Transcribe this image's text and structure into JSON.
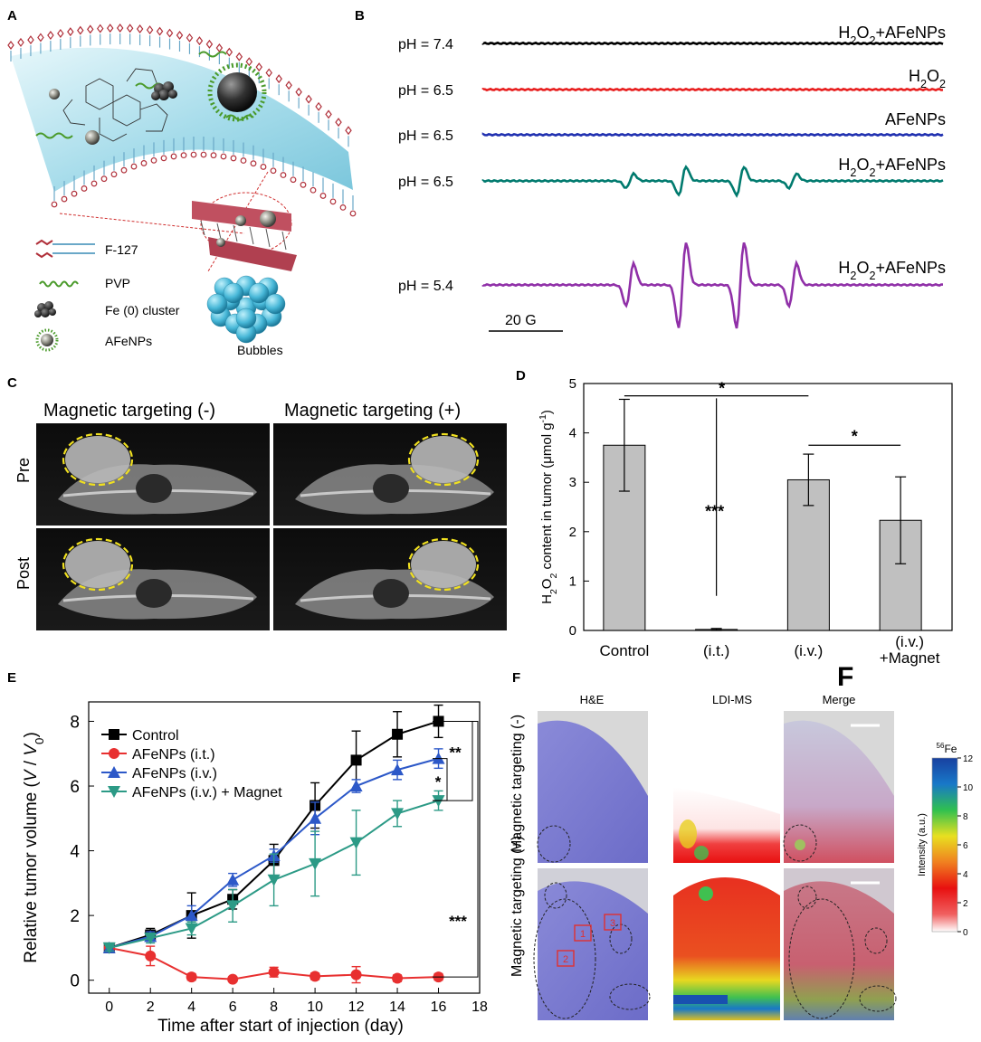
{
  "panels": {
    "A": {
      "letter": "A",
      "legend": [
        {
          "label": "F-127",
          "icon": "polymer-chain-icon"
        },
        {
          "label": "PVP",
          "icon": "pvp-chain-icon"
        },
        {
          "label": "Fe (0) cluster",
          "icon": "fe-cluster-icon"
        },
        {
          "label": "AFeNPs",
          "icon": "nanoparticle-icon"
        }
      ],
      "bubbles_label": "Bubbles",
      "colors": {
        "membrane": "#b8e4ee",
        "head": "#b0303a",
        "tail": "#6aa8c8",
        "bubble": "#48b8d8"
      }
    },
    "B": {
      "letter": "B",
      "traces": [
        {
          "ph": "pH = 7.4",
          "label": "H2O2+AFeNPs",
          "color": "#000000",
          "amplitude": 0
        },
        {
          "ph": "pH = 6.5",
          "label": "H2O2",
          "color": "#e82020",
          "amplitude": 0
        },
        {
          "ph": "pH = 6.5",
          "label": "AFeNPs",
          "color": "#2030b0",
          "amplitude": 0
        },
        {
          "ph": "pH = 6.5",
          "label": "H2O2+AFeNPs",
          "color": "#007a6e",
          "amplitude": 1
        },
        {
          "ph": "pH = 5.4",
          "label": "H2O2+AFeNPs",
          "color": "#9030a8",
          "amplitude": 3
        }
      ],
      "scale_bar": "20 G"
    },
    "C": {
      "letter": "C",
      "col_titles": [
        "Magnetic targeting (-)",
        "Magnetic targeting (+)"
      ],
      "row_labels": [
        "Pre",
        "Post"
      ]
    },
    "D": {
      "letter": "D",
      "chart_data": {
        "type": "bar",
        "categories": [
          "Control",
          "(i.t.)",
          "(i.v.)",
          "(i.v.)\n+Magnet"
        ],
        "values": [
          3.75,
          0.02,
          3.05,
          2.23
        ],
        "errors": [
          0.93,
          0.02,
          0.52,
          0.88
        ],
        "ylabel": "H2O2 content in tumor (μmol g-1)",
        "ylim": [
          0,
          5
        ],
        "yticks": [
          0,
          1,
          2,
          3,
          4,
          5
        ],
        "annotations": [
          "*",
          "*",
          "***"
        ],
        "bar_color": "#c0c0c0"
      },
      "stray_letter": "F"
    },
    "E": {
      "letter": "E",
      "chart_data": {
        "type": "line",
        "x": [
          0,
          2,
          4,
          6,
          8,
          10,
          12,
          14,
          16
        ],
        "xlim": [
          -1,
          18
        ],
        "xticks": [
          0,
          2,
          4,
          6,
          8,
          10,
          12,
          14,
          16,
          18
        ],
        "ylim": [
          -0.4,
          8.6
        ],
        "yticks": [
          0,
          2,
          4,
          6,
          8
        ],
        "xlabel": "Time after start of injection (day)",
        "ylabel": "Relative tumor volume (V / V0)",
        "series": [
          {
            "name": "Control",
            "color": "#000000",
            "marker": "square",
            "values": [
              1.0,
              1.4,
              2.0,
              2.5,
              3.7,
              5.4,
              6.8,
              7.6,
              8.0
            ],
            "errors": [
              0.1,
              0.2,
              0.7,
              0.3,
              0.5,
              0.7,
              0.9,
              0.7,
              0.5
            ]
          },
          {
            "name": "AFeNPs (i.t.)",
            "color": "#e83030",
            "marker": "circle",
            "values": [
              1.0,
              0.75,
              0.1,
              0.03,
              0.25,
              0.12,
              0.17,
              0.06,
              0.1
            ],
            "errors": [
              0.05,
              0.3,
              0.1,
              0.05,
              0.15,
              0.1,
              0.25,
              0.1,
              0.1
            ]
          },
          {
            "name": "AFeNPs (i.v.)",
            "color": "#2c58c8",
            "marker": "triangle",
            "values": [
              1.0,
              1.35,
              2.0,
              3.1,
              3.85,
              5.0,
              6.0,
              6.5,
              6.85
            ],
            "errors": [
              0.1,
              0.15,
              0.3,
              0.2,
              0.2,
              0.5,
              0.2,
              0.3,
              0.3
            ]
          },
          {
            "name": "AFeNPs (i.v.) + Magnet",
            "color": "#2c9a86",
            "marker": "triangle-down",
            "values": [
              1.0,
              1.3,
              1.6,
              2.3,
              3.1,
              3.6,
              4.25,
              5.15,
              5.55
            ],
            "errors": [
              0.1,
              0.15,
              0.2,
              0.5,
              0.8,
              1.0,
              1.0,
              0.4,
              0.3
            ]
          }
        ],
        "significance": [
          "**",
          "*",
          "***"
        ]
      }
    },
    "F": {
      "letter": "F",
      "col_titles": [
        "H&E",
        "LDI-MS",
        "Merge"
      ],
      "row_labels": [
        "Magnetic targeting (-)",
        "Magnetic targeting (+)"
      ],
      "roi_labels": [
        "1",
        "2",
        "3"
      ],
      "colorbar": {
        "title": "56Fe",
        "title_sup": "56",
        "title_main": "Fe",
        "label": "Intensity (a.u.)",
        "ticks": [
          0,
          2,
          4,
          6,
          8,
          10,
          12
        ],
        "colors": [
          "#ffffff",
          "#e81010",
          "#f08020",
          "#e8e020",
          "#30c050",
          "#1878c8",
          "#1840a0"
        ]
      }
    }
  }
}
